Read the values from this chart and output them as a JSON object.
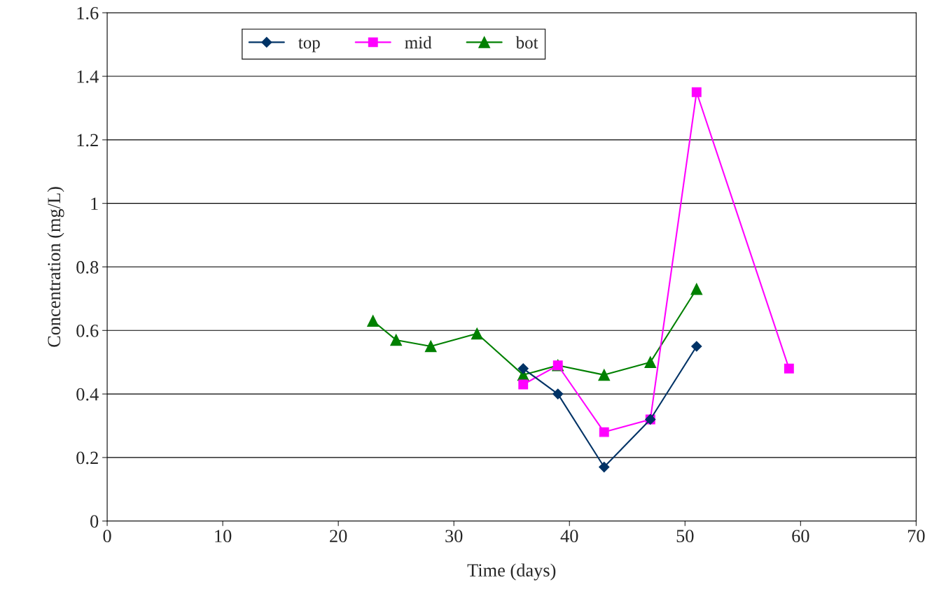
{
  "chart_data": {
    "type": "line",
    "xlabel": "Time (days)",
    "ylabel": "Concentration (mg/L)",
    "xlim": [
      0,
      70
    ],
    "xticks": [
      0,
      10,
      20,
      30,
      40,
      50,
      60,
      70
    ],
    "ylim": [
      0,
      1.6
    ],
    "yticks": [
      0,
      0.2,
      0.4,
      0.6,
      0.8,
      1,
      1.2,
      1.4,
      1.6
    ],
    "grid": "y",
    "legend": "top left",
    "series": [
      {
        "name": "top",
        "color": "#003366",
        "marker": "diamond",
        "x": [
          36,
          39,
          43,
          47,
          51
        ],
        "values": [
          0.48,
          0.4,
          0.17,
          0.32,
          0.55
        ]
      },
      {
        "name": "mid",
        "color": "#ff00ff",
        "marker": "square",
        "x": [
          36,
          39,
          43,
          47,
          51,
          59
        ],
        "values": [
          0.43,
          0.49,
          0.28,
          0.32,
          1.35,
          0.48
        ]
      },
      {
        "name": "bot",
        "color": "#008000",
        "marker": "triangle",
        "x": [
          23,
          25,
          28,
          32,
          36,
          39,
          43,
          47,
          51
        ],
        "values": [
          0.63,
          0.57,
          0.55,
          0.59,
          0.46,
          0.49,
          0.46,
          0.5,
          0.73
        ]
      }
    ]
  }
}
